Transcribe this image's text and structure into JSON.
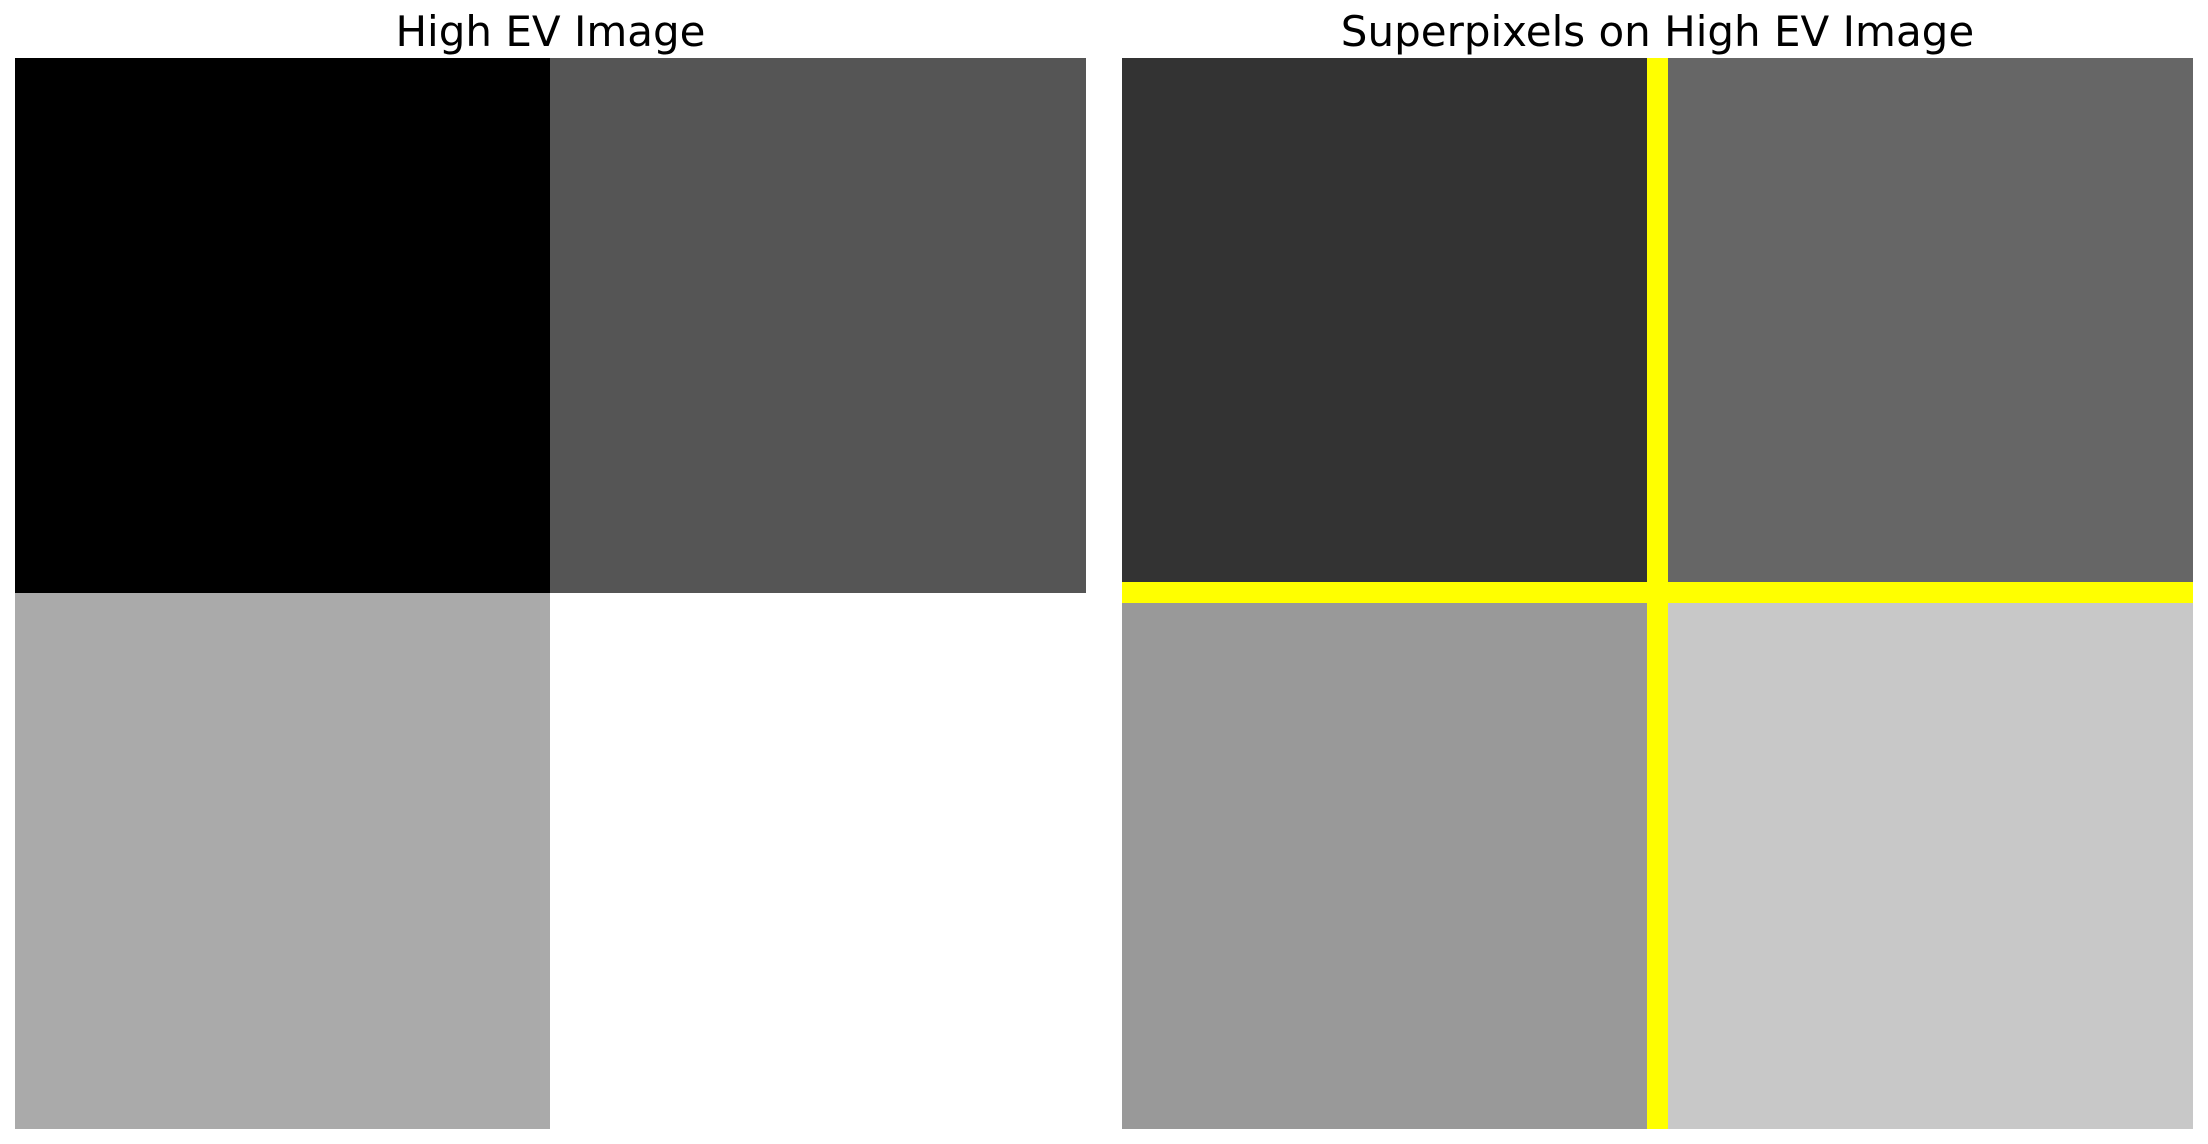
{
  "panels": [
    {
      "title": "High EV Image",
      "quadrant_colors": {
        "top_left": "#000000",
        "top_right": "#555555",
        "bottom_left": "#aaaaaa",
        "bottom_right": "#ffffff"
      }
    },
    {
      "title": "Superpixels on High EV Image",
      "quadrant_colors": {
        "top_left": "#333333",
        "top_right": "#666666",
        "bottom_left": "#999999",
        "bottom_right": "#c8c8c8"
      },
      "boundary_color": "#ffff00"
    }
  ]
}
